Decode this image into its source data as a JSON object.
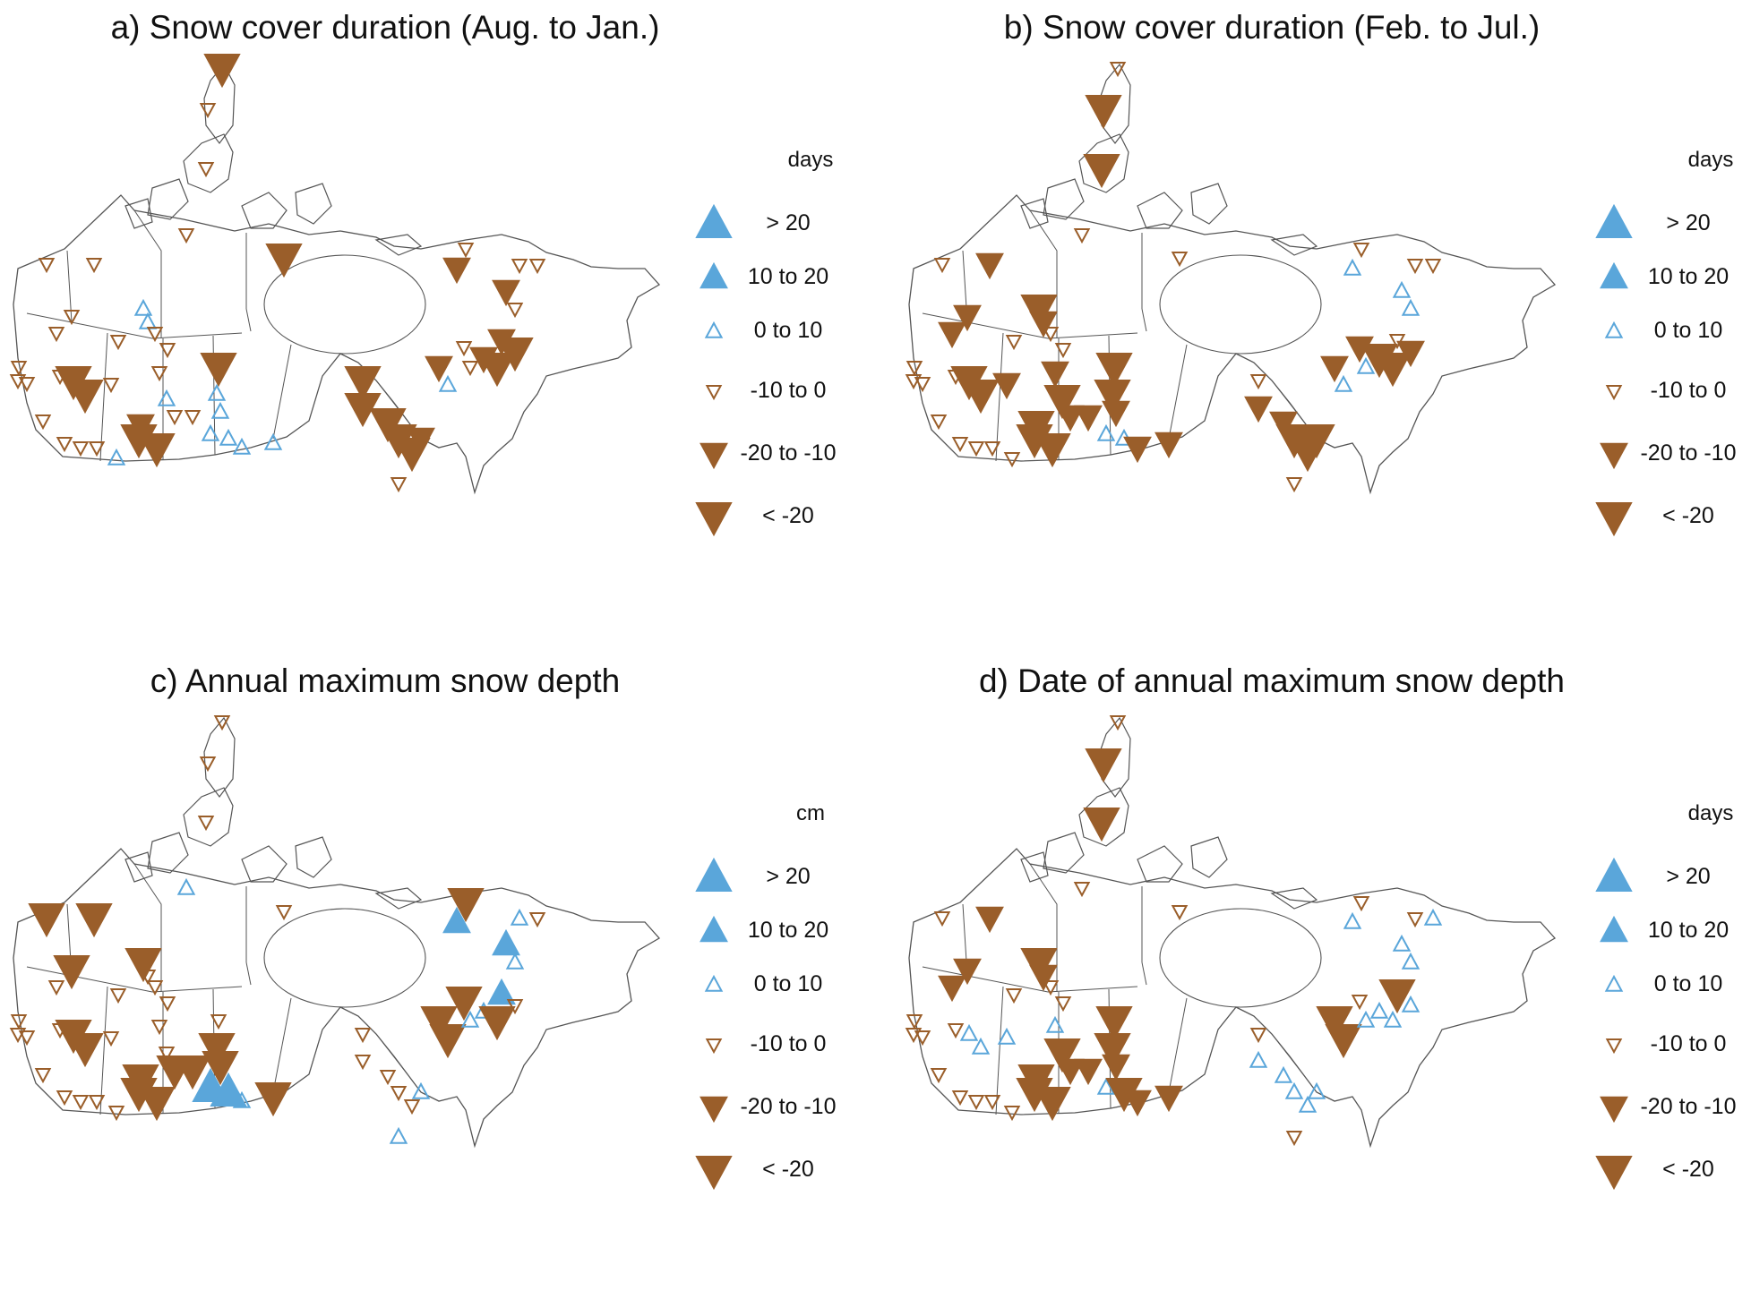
{
  "colors": {
    "increase": "#5aa6da",
    "decrease": "#9a5e2a",
    "outline": "#555555"
  },
  "panels": [
    {
      "title": "a) Snow cover duration (Aug. to Jan.)",
      "unit": "days",
      "legend": [
        "> 20",
        "10 to 20",
        "0 to 10",
        "-10 to 0",
        "-20 to -10",
        "< -20"
      ]
    },
    {
      "title": "b) Snow cover duration (Feb. to Jul.)",
      "unit": "days",
      "legend": [
        "> 20",
        "10 to 20",
        "0 to 10",
        "-10 to 0",
        "-20 to -10",
        "< -20"
      ]
    },
    {
      "title": "c) Annual maximum snow depth",
      "unit": "cm",
      "legend": [
        "> 20",
        "10 to 20",
        "0 to 10",
        "-10 to 0",
        "-20 to -10",
        "< -20"
      ]
    },
    {
      "title": "d) Date of annual maximum snow depth",
      "unit": "days",
      "legend": [
        "> 20",
        "10 to 20",
        "0 to 10",
        "-10 to 0",
        "-20 to -10",
        "< -20"
      ]
    }
  ]
}
